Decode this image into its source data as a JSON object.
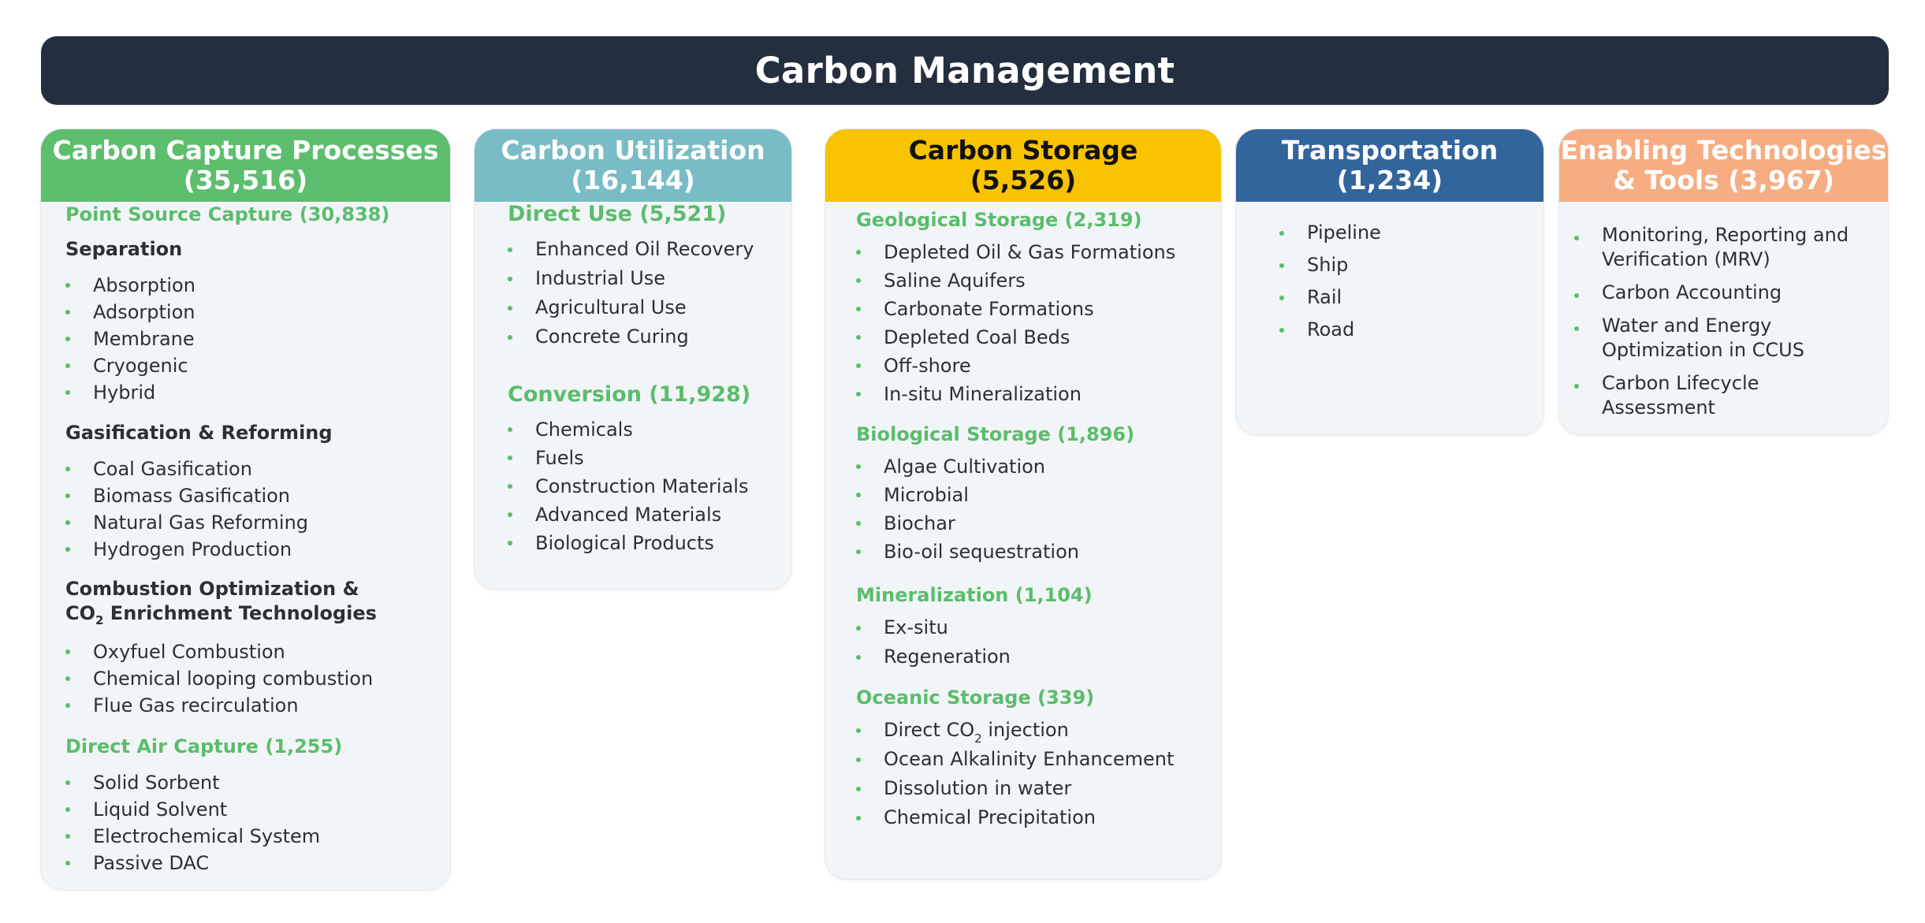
{
  "title": "Carbon Management",
  "colors": {
    "banner": "#232f3e",
    "capture": "#5dbe6e",
    "utilization": "#79bcc6",
    "storage": "#f8c300",
    "transportation": "#33659d",
    "enabling": "#f7ac82",
    "section_green": "#5abd6c",
    "card_bg": "#f2f5f7"
  },
  "capture": {
    "title_line1": "Carbon Capture Processes",
    "title_line2": "(35,516)",
    "point_source": "Point Source Capture (30,838)",
    "separation": {
      "label": "Separation",
      "items": [
        "Absorption",
        "Adsorption",
        "Membrane",
        "Cryogenic",
        "Hybrid"
      ]
    },
    "gasification": {
      "label": "Gasification & Reforming",
      "items": [
        "Coal Gasification",
        "Biomass Gasification",
        "Natural Gas Reforming",
        "Hydrogen Production"
      ]
    },
    "combustion": {
      "label_line1": "Combustion Optimization &",
      "label_line2_pre": "CO",
      "label_line2_sub": "2",
      "label_line2_post": " Enrichment Technologies",
      "items": [
        "Oxyfuel Combustion",
        "Chemical looping combustion",
        "Flue Gas recirculation"
      ]
    },
    "dac": {
      "label": "Direct Air Capture (1,255)",
      "items": [
        "Solid Sorbent",
        "Liquid Solvent",
        "Electrochemical System",
        "Passive DAC"
      ]
    }
  },
  "utilization": {
    "title_line1": "Carbon Utilization",
    "title_line2": "(16,144)",
    "direct_use": {
      "label": "Direct Use (5,521)",
      "items": [
        "Enhanced Oil Recovery",
        "Industrial Use",
        "Agricultural Use",
        "Concrete Curing"
      ]
    },
    "conversion": {
      "label": "Conversion (11,928)",
      "items": [
        "Chemicals",
        "Fuels",
        "Construction Materials",
        "Advanced Materials",
        "Biological Products"
      ]
    }
  },
  "storage": {
    "title_line1": "Carbon Storage",
    "title_line2": "(5,526)",
    "geological": {
      "label": "Geological Storage (2,319)",
      "items": [
        "Depleted Oil & Gas Formations",
        "Saline Aquifers",
        "Carbonate Formations",
        "Depleted Coal Beds",
        "Off-shore",
        "In-situ Mineralization"
      ]
    },
    "biological": {
      "label": "Biological Storage (1,896)",
      "items": [
        "Algae Cultivation",
        "Microbial",
        "Biochar",
        "Bio-oil sequestration"
      ]
    },
    "mineralization": {
      "label": "Mineralization (1,104)",
      "items": [
        "Ex-situ",
        "Regeneration"
      ]
    },
    "oceanic": {
      "label": "Oceanic Storage (339)",
      "direct_pre": "Direct CO",
      "direct_sub": "2",
      "direct_post": " injection",
      "items": [
        "Ocean Alkalinity Enhancement",
        "Dissolution in water",
        "Chemical Precipitation"
      ]
    }
  },
  "transportation": {
    "title_line1": "Transportation",
    "title_line2": "(1,234)",
    "items": [
      "Pipeline",
      "Ship",
      "Rail",
      "Road"
    ]
  },
  "enabling": {
    "title_line1": "Enabling Technologies",
    "title_line2": "& Tools (3,967)",
    "items": [
      "Monitoring, Reporting and Verification (MRV)",
      "Carbon Accounting",
      "Water and Energy Optimization in CCUS",
      "Carbon Lifecycle Assessment"
    ]
  }
}
